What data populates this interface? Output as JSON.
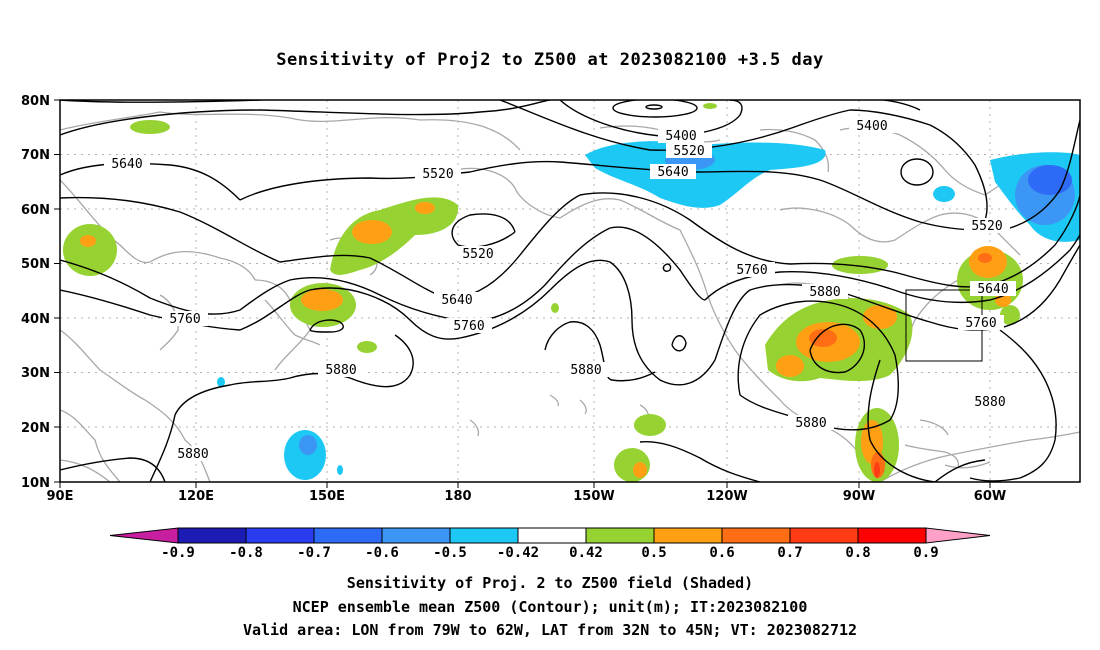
{
  "title": "Sensitivity of Proj2 to Z500 at 2023082100 +3.5 day",
  "lat_ticks": [
    "80N",
    "70N",
    "60N",
    "50N",
    "40N",
    "30N",
    "20N",
    "10N"
  ],
  "lon_ticks": [
    "90E",
    "120E",
    "150E",
    "180",
    "150W",
    "120W",
    "90W",
    "60W"
  ],
  "contour_labels": [
    "5400",
    "5400",
    "5520",
    "5520",
    "5520",
    "5520",
    "5640",
    "5640",
    "5640",
    "5640",
    "5760",
    "5760",
    "5760",
    "5760",
    "5880",
    "5880",
    "5880",
    "5880",
    "5880",
    "5880"
  ],
  "colorbar": {
    "labels": [
      "-0.9",
      "-0.8",
      "-0.7",
      "-0.6",
      "-0.5",
      "-0.42",
      "0.42",
      "0.5",
      "0.6",
      "0.7",
      "0.8",
      "0.9"
    ],
    "colors": [
      "#1c1cb4",
      "#2a3cf0",
      "#2d6af5",
      "#3c96f5",
      "#1ec8f5",
      "#ffffff",
      "#96d232",
      "#ffa014",
      "#ff6e14",
      "#ff3c14",
      "#ff0000"
    ],
    "low_end_color": "#c81ea0",
    "high_end_color": "#ffa0c8"
  },
  "caption": {
    "line1": "Sensitivity of Proj. 2 to Z500 field (Shaded)",
    "line2": "NCEP ensemble mean Z500 (Contour); unit(m); IT:2023082100",
    "line3": "Valid area: LON from 79W to 62W, LAT from 32N to 45N; VT: 2023082712"
  }
}
